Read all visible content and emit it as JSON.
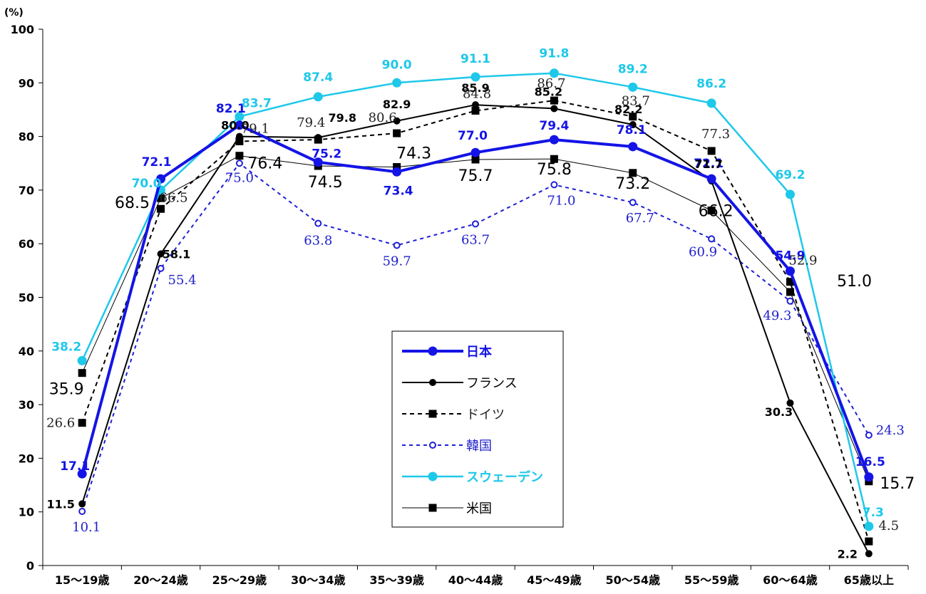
{
  "chart_data": {
    "type": "line",
    "ylabel": "(%)",
    "ylim": [
      0,
      100
    ],
    "yticks": [
      "0",
      "10",
      "20",
      "30",
      "40",
      "50",
      "60",
      "70",
      "80",
      "90",
      "100"
    ],
    "categories": [
      "15〜19歳",
      "20〜24歳",
      "25〜29歳",
      "30〜34歳",
      "35〜39歳",
      "40〜44歳",
      "45〜49歳",
      "50〜54歳",
      "55〜59歳",
      "60〜64歳",
      "65歳以上"
    ],
    "grid": false,
    "legend_position": "center-bottom",
    "series": [
      {
        "name": "日本",
        "color": "#1414e6",
        "values": [
          17.1,
          72.1,
          82.1,
          75.2,
          73.4,
          77.0,
          79.4,
          78.1,
          72.1,
          54.9,
          16.5
        ],
        "labels": [
          "17.1",
          "72.1",
          "82.1",
          "75.2",
          "73.4",
          "77.0",
          "79.4",
          "78.1",
          "72.1",
          "54.9",
          "16.5"
        ]
      },
      {
        "name": "フランス",
        "color": "#000000",
        "values": [
          11.5,
          58.1,
          80.0,
          79.8,
          82.9,
          85.9,
          85.2,
          82.2,
          71.7,
          30.3,
          2.2
        ],
        "labels": [
          "11.5",
          "58.1",
          "80.0",
          "79.8",
          "82.9",
          "85.9",
          "85.2",
          "82.2",
          "71.7",
          "30.3",
          "2.2"
        ]
      },
      {
        "name": "ドイツ",
        "color": "#000000",
        "values": [
          26.6,
          66.5,
          79.1,
          79.4,
          80.6,
          84.8,
          86.7,
          83.7,
          77.3,
          52.9,
          4.5
        ],
        "labels": [
          "26.6",
          "66.5",
          "79.1",
          "79.4",
          "80.6",
          "84.8",
          "86.7",
          "83.7",
          "77.3",
          "52.9",
          "4.5"
        ]
      },
      {
        "name": "韓国",
        "color": "#1f1fd6",
        "values": [
          10.1,
          55.4,
          75.0,
          63.8,
          59.7,
          63.7,
          71.0,
          67.7,
          60.9,
          49.3,
          24.3
        ],
        "labels": [
          "10.1",
          "55.4",
          "75.0",
          "63.8",
          "59.7",
          "63.7",
          "71.0",
          "67.7",
          "60.9",
          "49.3",
          "24.3"
        ]
      },
      {
        "name": "スウェーデン",
        "color": "#1ec8ea",
        "values": [
          38.2,
          70.0,
          83.7,
          87.4,
          90.0,
          91.1,
          91.8,
          89.2,
          86.2,
          69.2,
          7.3
        ],
        "labels": [
          "38.2",
          "70.0",
          "83.7",
          "87.4",
          "90.0",
          "91.1",
          "91.8",
          "89.2",
          "86.2",
          "69.2",
          "7.3"
        ]
      },
      {
        "name": "米国",
        "color": "#000000",
        "values": [
          35.9,
          68.5,
          76.4,
          74.5,
          74.3,
          75.7,
          75.8,
          73.2,
          66.2,
          51.0,
          15.7
        ],
        "labels": [
          "35.9",
          "68.5",
          "76.4",
          "74.5",
          "74.3",
          "75.7",
          "75.8",
          "73.2",
          "66.2",
          "51.0",
          "15.7"
        ]
      }
    ]
  }
}
